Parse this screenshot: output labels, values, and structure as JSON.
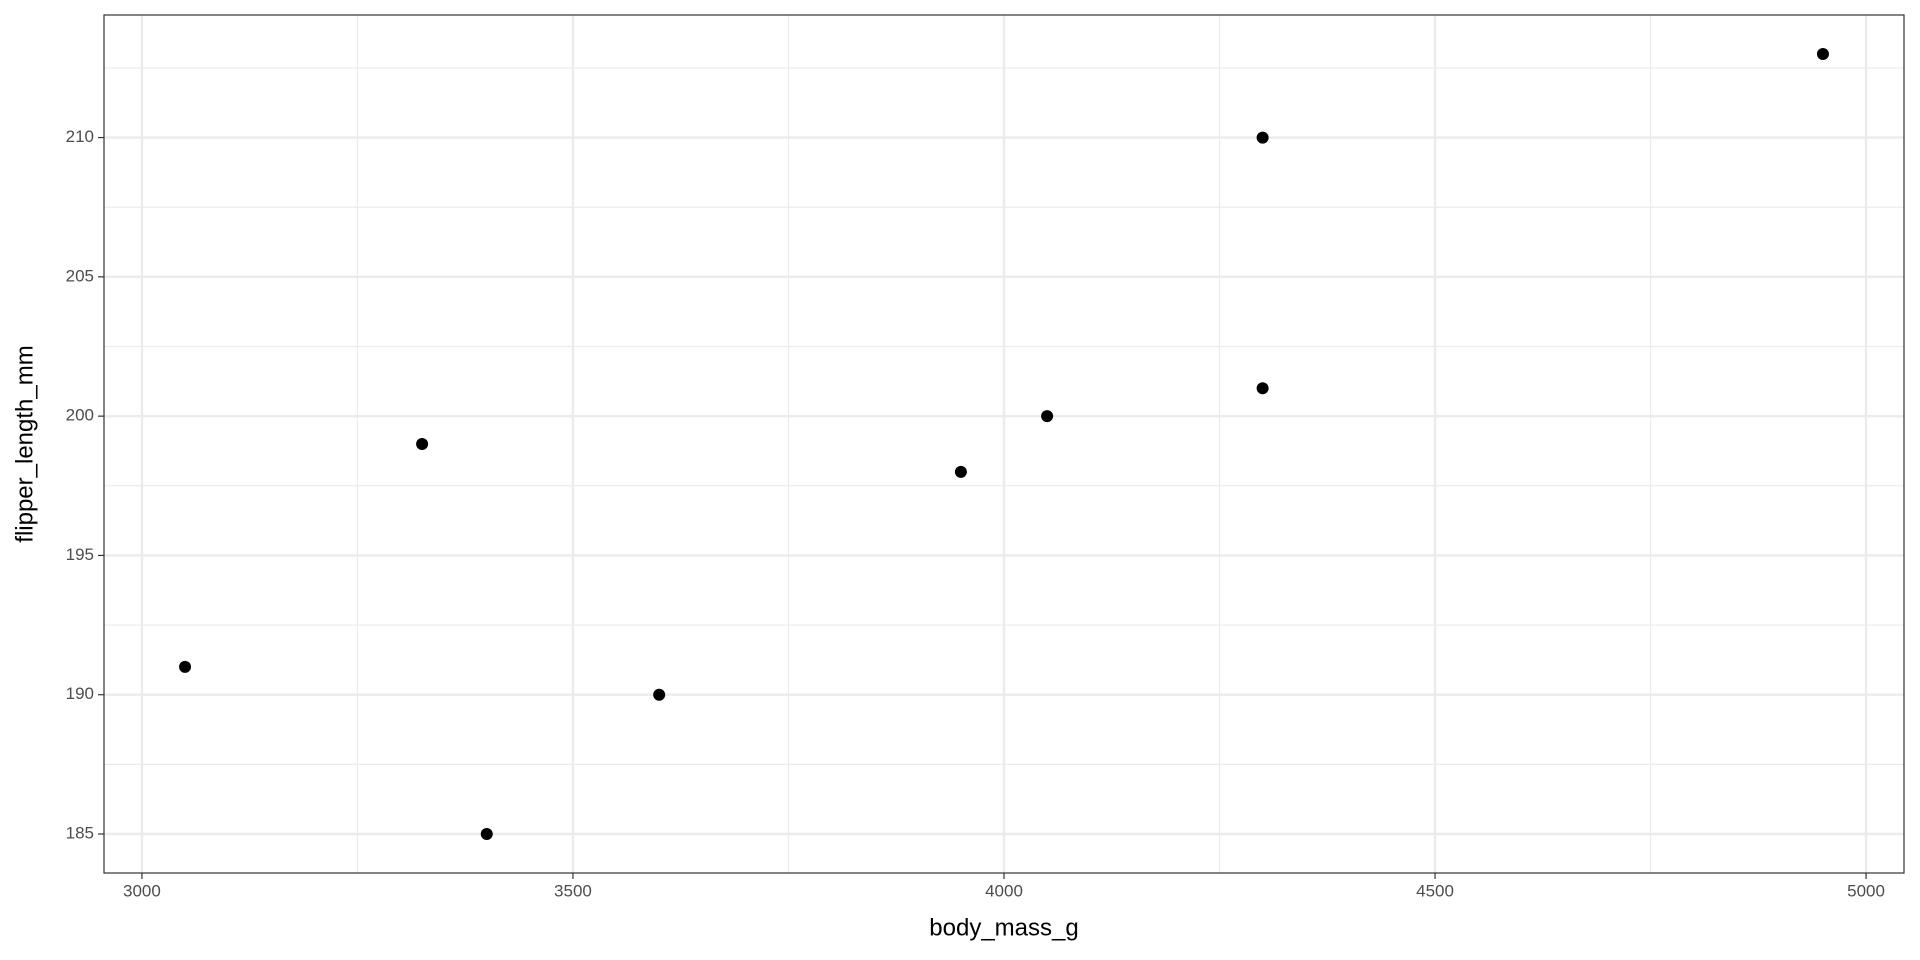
{
  "chart_data": {
    "type": "scatter",
    "x_label": "body_mass_g",
    "y_label": "flipper_length_mm",
    "x": [
      3050,
      3325,
      3400,
      3600,
      3950,
      4050,
      4300,
      4300,
      4950
    ],
    "values": [
      191,
      199,
      185,
      190,
      198,
      200,
      210,
      201,
      213
    ],
    "color": "#000000",
    "xlim": [
      2956,
      5044
    ],
    "xticks": [
      3000,
      3500,
      4000,
      4500,
      5000
    ],
    "ylim": [
      183.6,
      214.4
    ],
    "yticks": [
      185,
      190,
      195,
      200,
      205,
      210
    ],
    "grid": true
  }
}
